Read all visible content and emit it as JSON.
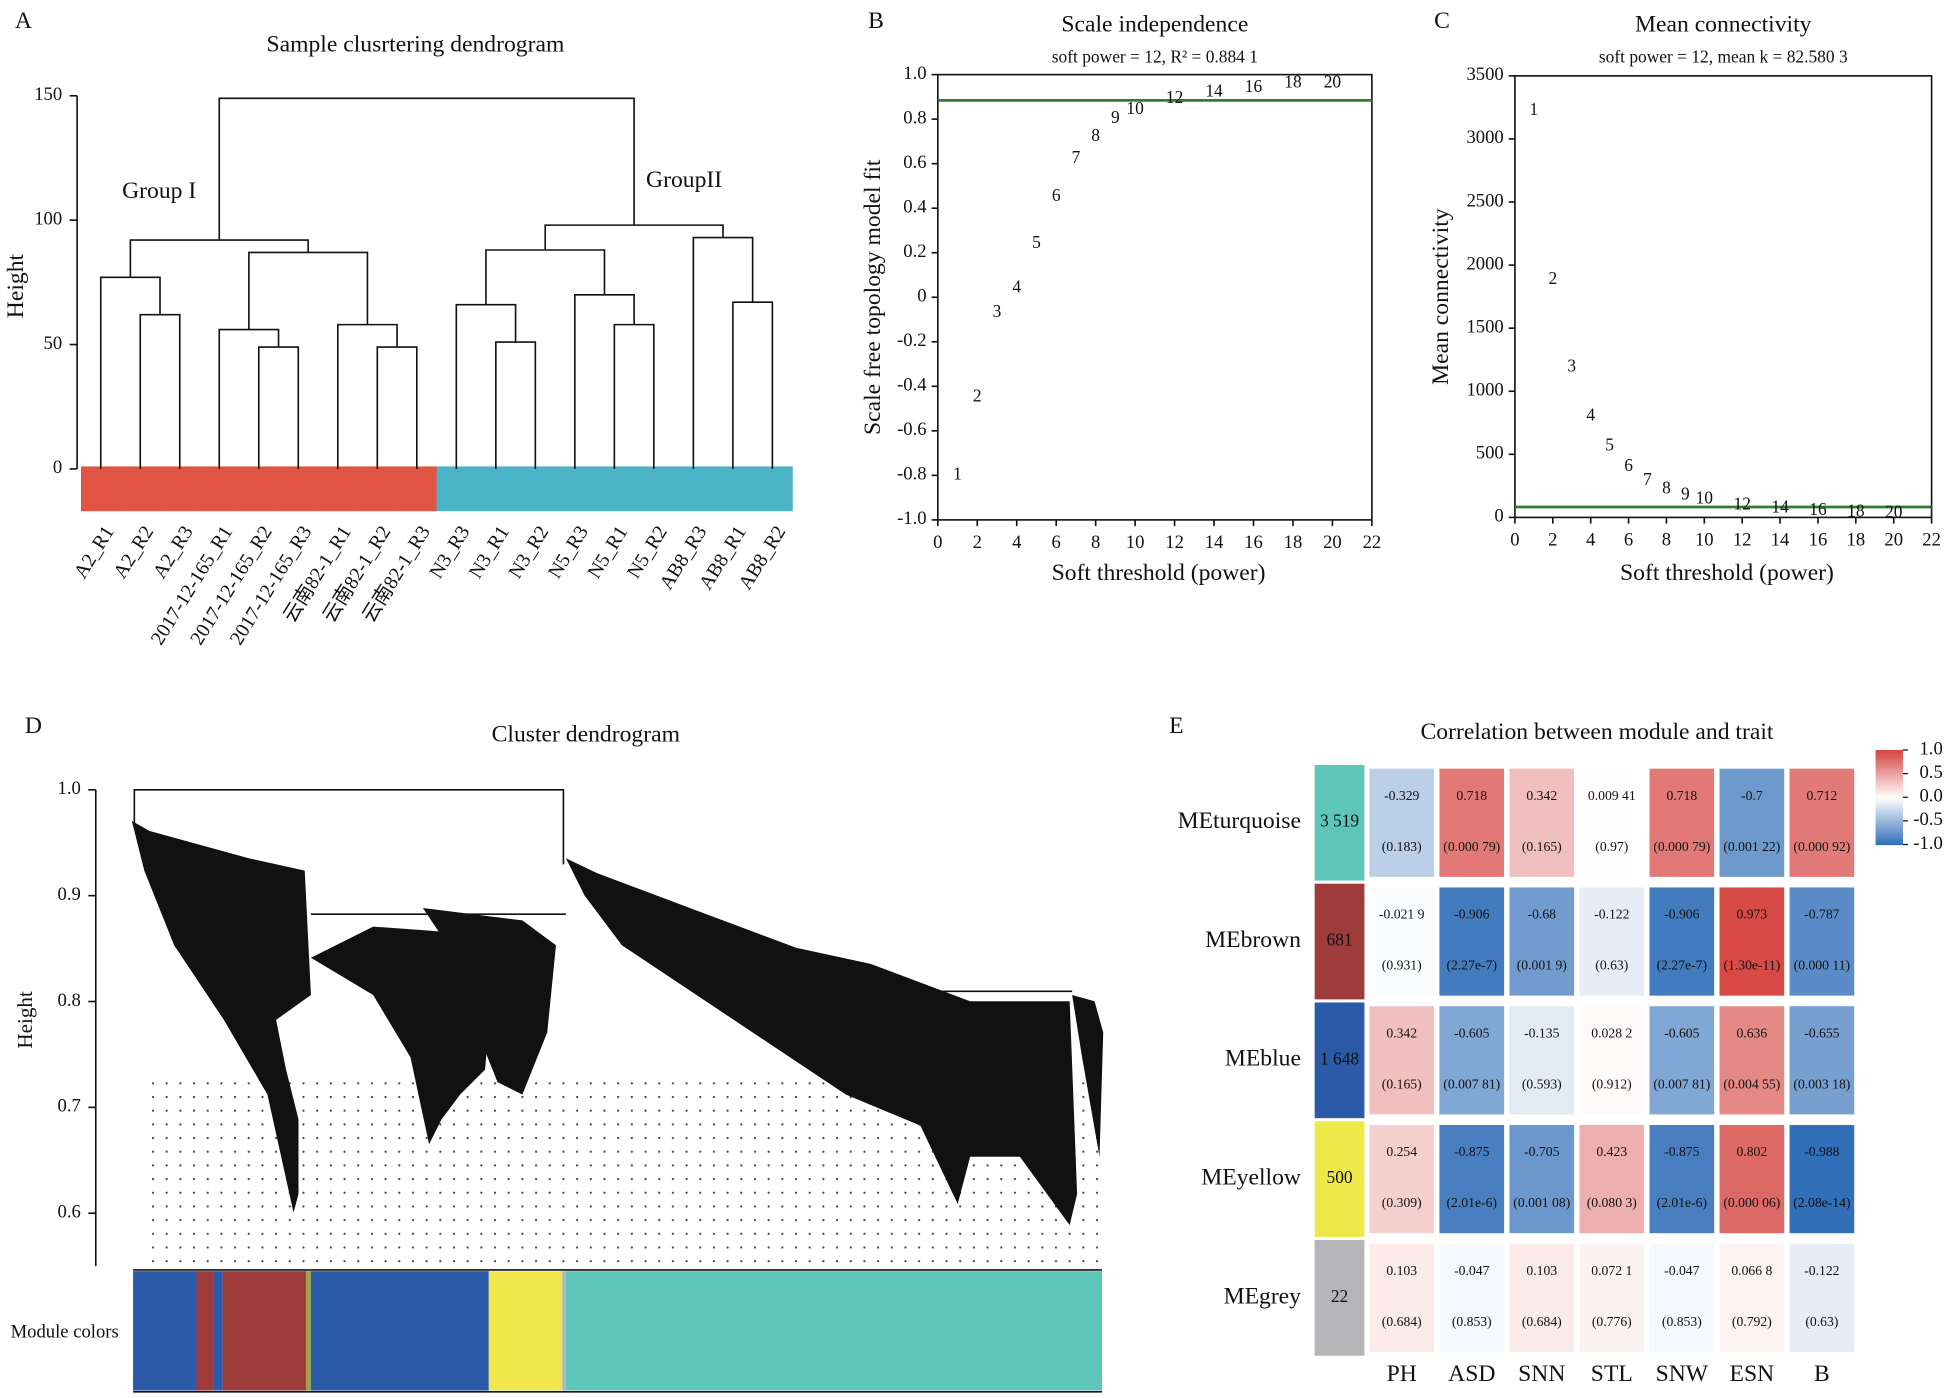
{
  "chart_data": [
    {
      "type": "dendrogram",
      "label": "A",
      "title": "Sample clusrtering dendrogram",
      "y_label": "Height",
      "ylim": [
        0,
        150
      ],
      "yticks": [
        0,
        50,
        100,
        150
      ],
      "leaves": [
        "A2_R1",
        "A2_R2",
        "A2_R3",
        "2017-12-165_R1",
        "2017-12-165_R2",
        "2017-12-165_R3",
        "云南82-1_R1",
        "云南82-1_R2",
        "云南82-1_R3",
        "N3_R3",
        "N3_R1",
        "N3_R2",
        "N5_R3",
        "N5_R1",
        "N5_R2",
        "AB8_R3",
        "AB8_R1",
        "AB8_R2"
      ],
      "leaf_colors": [
        "#e05444",
        "#e05444",
        "#e05444",
        "#e05444",
        "#e05444",
        "#e05444",
        "#e05444",
        "#e05444",
        "#e05444",
        "#4bb3c6",
        "#4bb3c6",
        "#4bb3c6",
        "#4bb3c6",
        "#4bb3c6",
        "#4bb3c6",
        "#4bb3c6",
        "#4bb3c6",
        "#4bb3c6"
      ],
      "merges": [
        [
          -2,
          -3
        ],
        [
          -1,
          1
        ],
        [
          -5,
          -6
        ],
        [
          -4,
          3
        ],
        [
          -8,
          -9
        ],
        [
          -7,
          5
        ],
        [
          4,
          6
        ],
        [
          2,
          7
        ],
        [
          -11,
          -12
        ],
        [
          -10,
          9
        ],
        [
          -14,
          -15
        ],
        [
          -13,
          11
        ],
        [
          10,
          12
        ],
        [
          -17,
          -18
        ],
        [
          -16,
          14
        ],
        [
          13,
          15
        ],
        [
          8,
          16
        ]
      ],
      "heights": [
        62,
        77,
        49,
        56,
        49,
        58,
        87,
        92,
        51,
        66,
        58,
        70,
        88,
        67,
        93,
        98,
        149
      ],
      "annotations": [
        "Group I",
        "GroupII"
      ]
    },
    {
      "type": "scatter_text",
      "label": "B",
      "title": "Scale independence",
      "subtitle": "soft power = 12, R² = 0.884 1",
      "x_label": "Soft threshold (power)",
      "y_label": "Scale free topology model fit",
      "x": [
        1,
        2,
        3,
        4,
        5,
        6,
        7,
        8,
        9,
        10,
        12,
        14,
        16,
        18,
        20
      ],
      "values": [
        -0.8,
        -0.45,
        -0.07,
        0.04,
        0.24,
        0.45,
        0.62,
        0.72,
        0.8,
        0.84,
        0.89,
        0.92,
        0.94,
        0.96,
        0.96
      ],
      "color": "#2e8b3a",
      "hline": 0.8841,
      "line_color": "#2e7d32",
      "xlim": [
        0,
        22
      ],
      "xticks": [
        0,
        2,
        4,
        6,
        8,
        10,
        12,
        14,
        16,
        18,
        20,
        22
      ],
      "ylim": [
        -1,
        1
      ],
      "yticks": [
        {
          "value": -1,
          "label": "-1.0"
        },
        -0.8,
        -0.6,
        -0.4,
        -0.2,
        0,
        0.2,
        0.4,
        0.6,
        0.8,
        {
          "value": 1,
          "label": "1.0"
        }
      ]
    },
    {
      "type": "scatter_text",
      "label": "C",
      "title": "Mean connectivity",
      "subtitle": "soft power = 12, mean k = 82.580 3",
      "x_label": "Soft threshold (power)",
      "y_label": "Mean connectivity",
      "x": [
        1,
        2,
        3,
        4,
        5,
        6,
        7,
        8,
        9,
        10,
        12,
        14,
        16,
        18,
        20
      ],
      "values": [
        3220,
        1880,
        1190,
        800,
        560,
        400,
        290,
        220,
        175,
        140,
        95,
        70,
        50,
        40,
        30
      ],
      "color": "#2e8b3a",
      "hline": 82.5803,
      "line_color": "#2e7d32",
      "xlim": [
        0,
        22
      ],
      "xticks": [
        0,
        2,
        4,
        6,
        8,
        10,
        12,
        14,
        16,
        18,
        20,
        22
      ],
      "ylim": [
        0,
        3500
      ],
      "yticks": [
        0,
        500,
        1000,
        1500,
        2000,
        2500,
        3000,
        3500
      ]
    },
    {
      "type": "gene_dendrogram",
      "label": "D",
      "title": "Cluster dendrogram",
      "y_label": "Height",
      "ylim": [
        0.55,
        1.0
      ],
      "yticks": [
        0.6,
        0.7,
        0.8,
        0.9,
        {
          "value": 1,
          "label": "1.0"
        }
      ],
      "module_label": "Module colors"
    },
    {
      "type": "heatmap",
      "label": "E",
      "title": "Correlation between module and trait",
      "rows": [
        "MEturquoise",
        "MEbrown",
        "MEblue",
        "MEyellow",
        "MEgrey"
      ],
      "row_colors": [
        "#5ec6b9",
        "#9e3b3b",
        "#2b5aa8",
        "#eee84a",
        "#b5b5b8"
      ],
      "row_counts": [
        3519,
        681,
        1648,
        500,
        22
      ],
      "row_count_labels": [
        "3 519",
        "681",
        "1 648",
        "500",
        "22"
      ],
      "columns": [
        "PH",
        "ASD",
        "SNN",
        "STL",
        "SNW",
        "ESN",
        "B"
      ],
      "values": [
        [
          -0.329,
          0.718,
          0.342,
          0.00941,
          0.718,
          -0.7,
          0.712
        ],
        [
          -0.0219,
          -0.906,
          -0.68,
          -0.122,
          -0.906,
          0.973,
          -0.787
        ],
        [
          0.342,
          -0.605,
          -0.135,
          0.0282,
          -0.605,
          0.636,
          -0.655
        ],
        [
          0.254,
          -0.875,
          -0.705,
          0.423,
          -0.875,
          0.802,
          -0.988
        ],
        [
          0.103,
          -0.047,
          0.103,
          0.0721,
          -0.047,
          0.0668,
          -0.122
        ]
      ],
      "value_labels": [
        [
          "-0.329",
          "0.718",
          "0.342",
          "0.009 41",
          "0.718",
          "-0.7",
          "0.712"
        ],
        [
          "-0.021 9",
          "-0.906",
          "-0.68",
          "-0.122",
          "-0.906",
          "0.973",
          "-0.787"
        ],
        [
          "0.342",
          "-0.605",
          "-0.135",
          "0.028 2",
          "-0.605",
          "0.636",
          "-0.655"
        ],
        [
          "0.254",
          "-0.875",
          "-0.705",
          "0.423",
          "-0.875",
          "0.802",
          "-0.988"
        ],
        [
          "0.103",
          "-0.047",
          "0.103",
          "0.072 1",
          "-0.047",
          "0.066 8",
          "-0.122"
        ]
      ],
      "p_values": [
        [
          0.183,
          0.00079,
          0.165,
          0.97,
          0.00079,
          0.00122,
          0.00092
        ],
        [
          0.931,
          2.27e-07,
          0.0019,
          0.63,
          2.27e-07,
          1.3e-11,
          0.00011
        ],
        [
          0.165,
          0.00781,
          0.593,
          0.912,
          0.00781,
          0.00455,
          0.00318
        ],
        [
          0.309,
          2.01e-06,
          0.00108,
          0.0803,
          2.01e-06,
          6e-05,
          2.08e-14
        ],
        [
          0.684,
          0.853,
          0.684,
          0.776,
          0.853,
          0.792,
          0.63
        ]
      ],
      "p_value_labels": [
        [
          "(0.183)",
          "(0.000 79)",
          "(0.165)",
          "(0.97)",
          "(0.000 79)",
          "(0.001 22)",
          "(0.000 92)"
        ],
        [
          "(0.931)",
          "(2.27e-7)",
          "(0.001 9)",
          "(0.63)",
          "(2.27e-7)",
          "(1.30e-11)",
          "(0.000 11)"
        ],
        [
          "(0.165)",
          "(0.007 81)",
          "(0.593)",
          "(0.912)",
          "(0.007 81)",
          "(0.004 55)",
          "(0.003 18)"
        ],
        [
          "(0.309)",
          "(2.01e-6)",
          "(0.001 08)",
          "(0.080 3)",
          "(2.01e-6)",
          "(0.000 06)",
          "(2.08e-14)"
        ],
        [
          "(0.684)",
          "(0.853)",
          "(0.684)",
          "(0.776)",
          "(0.853)",
          "(0.792)",
          "(0.63)"
        ]
      ],
      "clim": [
        -1,
        1
      ],
      "colors": [
        "#2f6db8",
        "#ffffff",
        "#d64541"
      ],
      "colorbar_ticks": [
        {
          "value": 1,
          "label": "1.0"
        },
        0.5,
        {
          "value": 0,
          "label": "0.0"
        },
        -0.5,
        {
          "value": -1,
          "label": "-1.0"
        }
      ]
    }
  ]
}
